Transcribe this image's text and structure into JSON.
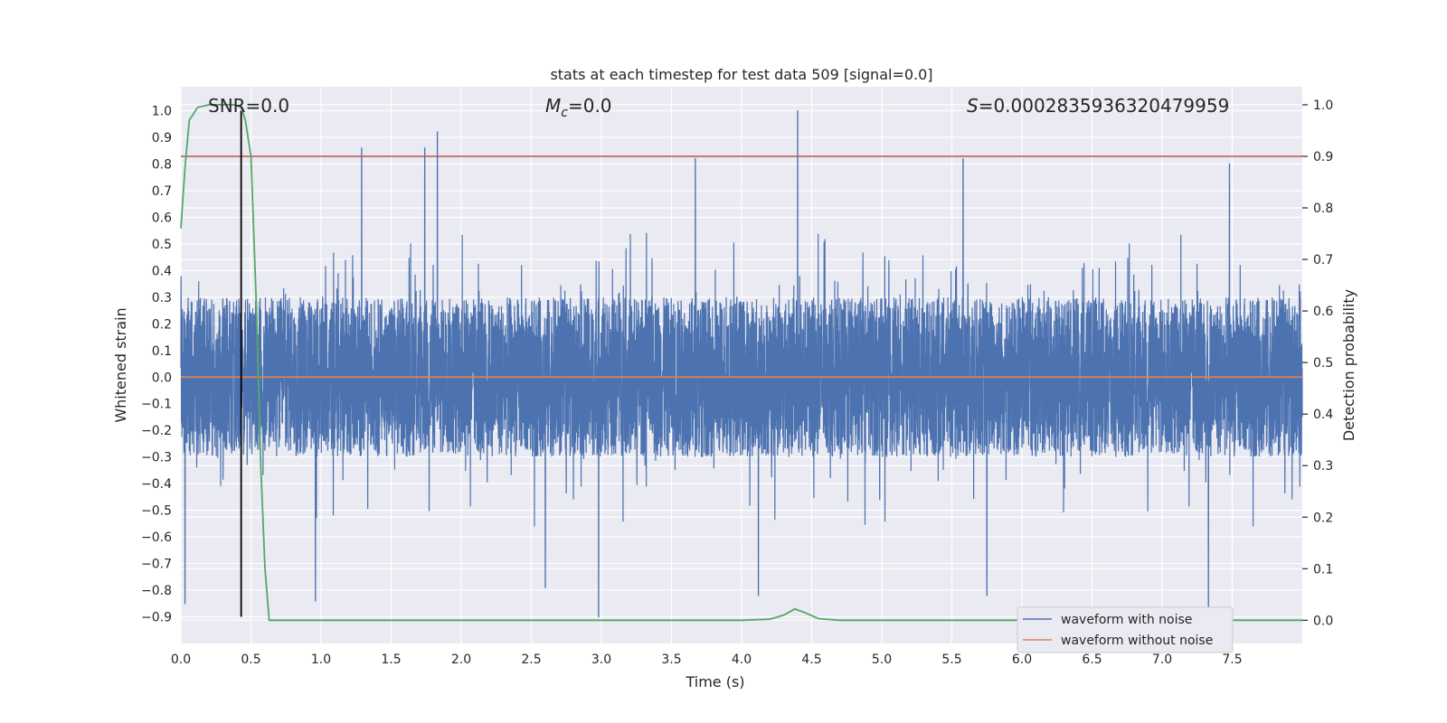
{
  "chart_data": {
    "type": "line",
    "title": "stats at each timestep for test data 509 [signal=0.0]",
    "xlabel": "Time (s)",
    "ylabel_left": "Whitened strain",
    "ylabel_right": "Detection probability",
    "xlim": [
      0,
      8.0
    ],
    "ylim_left": [
      -1.0,
      1.09
    ],
    "ylim_right": [
      -0.045,
      1.035
    ],
    "x_ticks": [
      0.0,
      0.5,
      1.0,
      1.5,
      2.0,
      2.5,
      3.0,
      3.5,
      4.0,
      4.5,
      5.0,
      5.5,
      6.0,
      6.5,
      7.0,
      7.5
    ],
    "y_ticks_left": [
      -0.9,
      -0.8,
      -0.7,
      -0.6,
      -0.5,
      -0.4,
      -0.3,
      -0.2,
      -0.1,
      0.0,
      0.1,
      0.2,
      0.3,
      0.4,
      0.5,
      0.6,
      0.7,
      0.8,
      0.9,
      1.0
    ],
    "y_ticks_right": [
      0.0,
      0.1,
      0.2,
      0.3,
      0.4,
      0.5,
      0.6,
      0.7,
      0.8,
      0.9,
      1.0
    ],
    "annotations": {
      "snr": "SNR=0.0",
      "mc_symbol": "M",
      "mc_sub": "c",
      "mc_value": "=0.0",
      "s_symbol": "S",
      "s_value": "=0.0002835936320479959"
    },
    "series": [
      {
        "name": "waveform with noise",
        "color": "#4c72b0",
        "axis": "left",
        "kind": "noise",
        "typical_abs": 0.3,
        "max": 1.0,
        "min": -0.9,
        "peaks": [
          [
            0.03,
            -0.85
          ],
          [
            0.96,
            -0.84
          ],
          [
            1.29,
            0.86
          ],
          [
            1.83,
            0.92
          ],
          [
            1.74,
            0.86
          ],
          [
            2.98,
            -0.9
          ],
          [
            3.67,
            0.82
          ],
          [
            4.4,
            1.0
          ],
          [
            5.58,
            0.82
          ],
          [
            7.33,
            -0.9
          ],
          [
            7.48,
            0.8
          ],
          [
            4.12,
            -0.82
          ],
          [
            5.75,
            -0.82
          ],
          [
            2.6,
            -0.79
          ]
        ]
      },
      {
        "name": "waveform without noise",
        "color": "#dd8452",
        "axis": "left",
        "x": [
          0,
          8.0
        ],
        "y": [
          0.0,
          0.0
        ]
      },
      {
        "name": "",
        "color": "#55a868",
        "axis": "right",
        "x": [
          0.0,
          0.03,
          0.06,
          0.12,
          0.2,
          0.3,
          0.38,
          0.43,
          0.46,
          0.5,
          0.54,
          0.57,
          0.6,
          0.63,
          0.7,
          1.0,
          2.0,
          3.0,
          4.0,
          4.2,
          4.3,
          4.38,
          4.45,
          4.55,
          4.7,
          5.0,
          6.0,
          7.0,
          8.0
        ],
        "y": [
          0.76,
          0.88,
          0.97,
          0.995,
          1.0,
          1.0,
          1.0,
          0.995,
          0.97,
          0.9,
          0.6,
          0.3,
          0.1,
          0.0,
          0.0,
          0.0,
          0.0,
          0.0,
          0.0,
          0.002,
          0.01,
          0.022,
          0.015,
          0.003,
          0.0,
          0.0,
          0.0,
          0.0,
          0.0
        ]
      }
    ],
    "threshold_line": {
      "color": "#c44e52",
      "axis": "right",
      "value": 0.9
    },
    "marker_line": {
      "color": "#000000",
      "x": 0.43,
      "y_from": -0.9,
      "y_to": 1.0
    },
    "legend": {
      "placement": "lower-right",
      "entries": [
        "waveform with noise",
        "waveform without noise"
      ]
    },
    "grid": true,
    "style": {
      "plot_background": "#eaeaf2",
      "grid_color": "#ffffff"
    }
  }
}
